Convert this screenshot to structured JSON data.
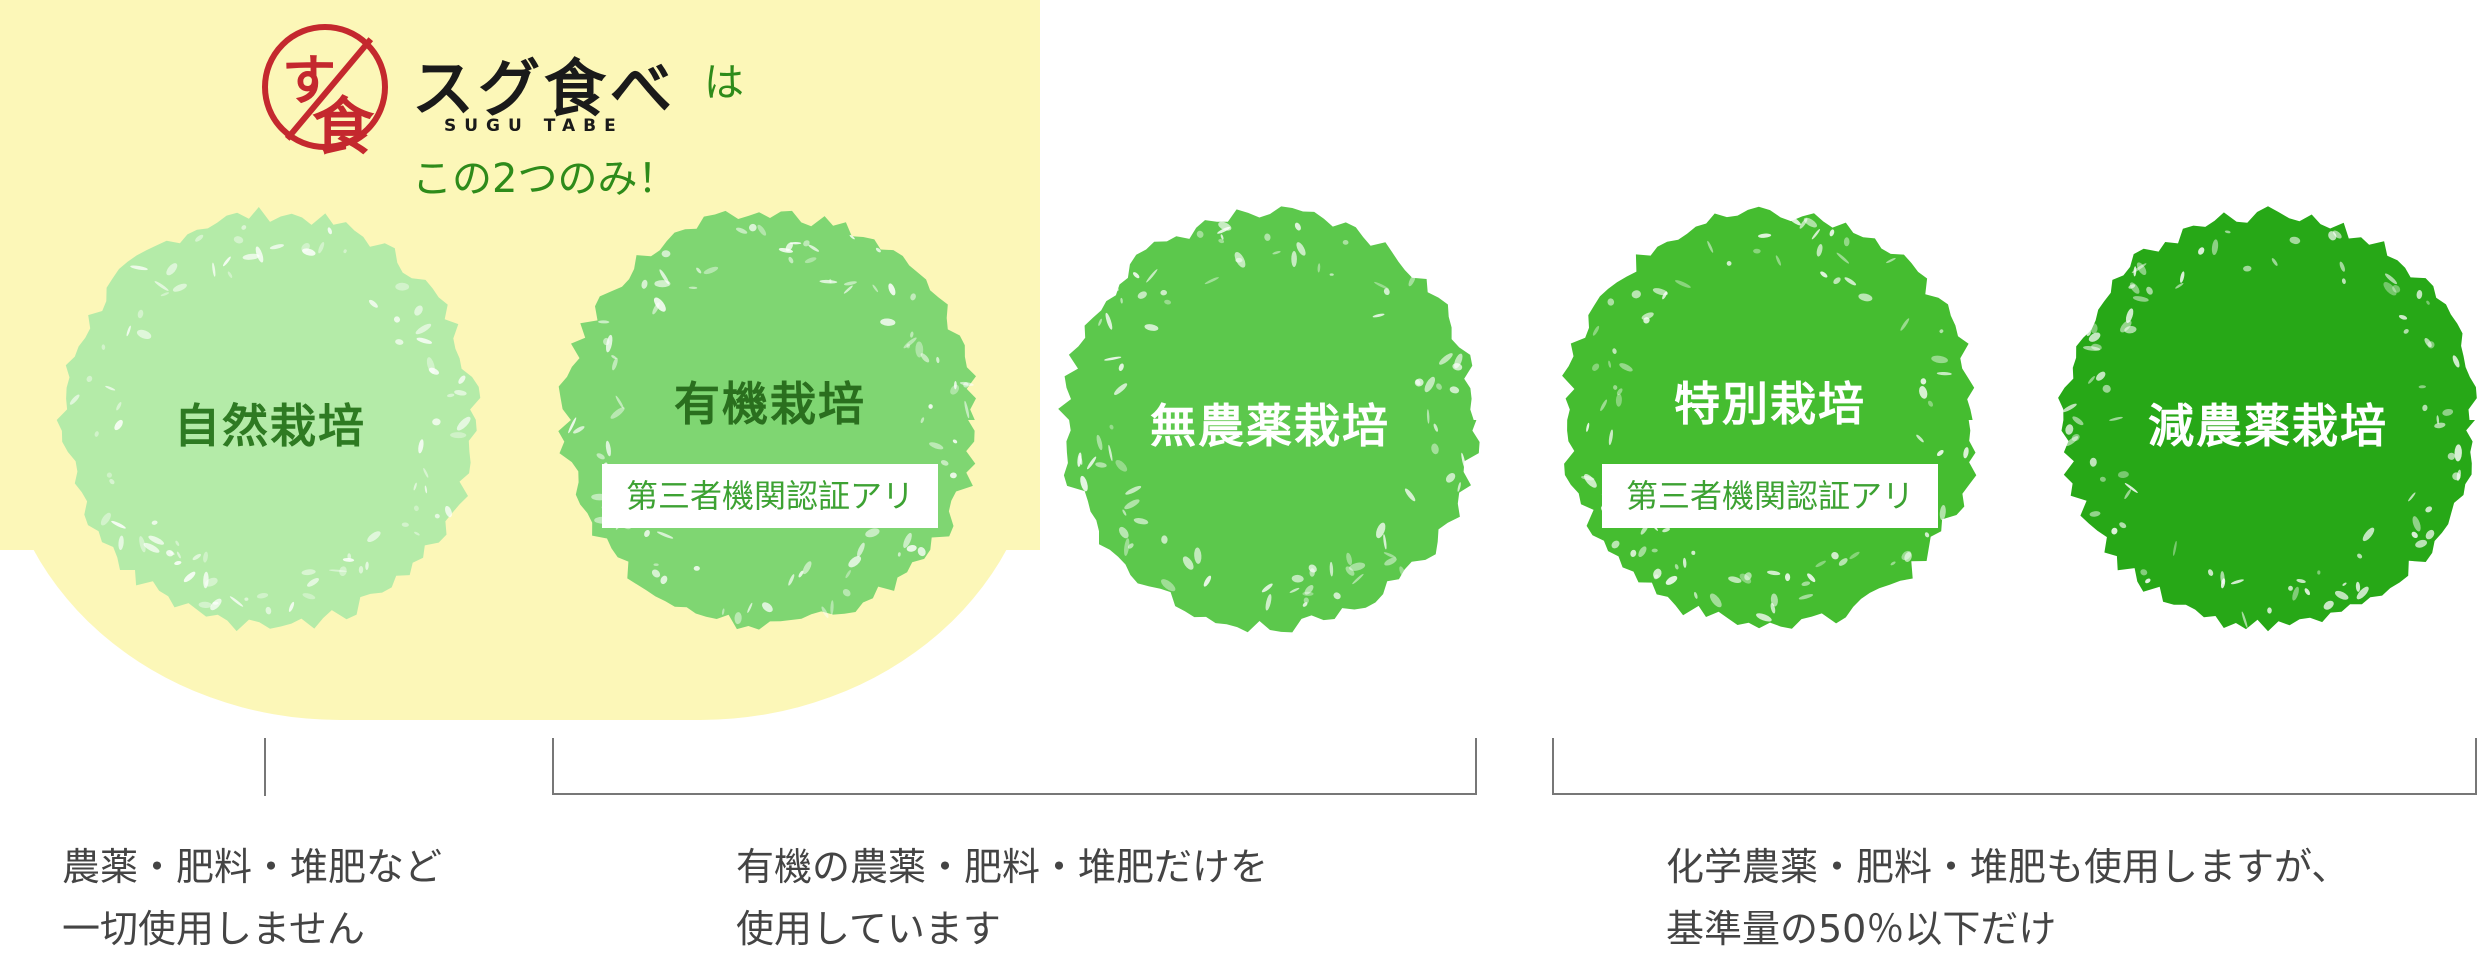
{
  "brand": {
    "name": "スグ食べ",
    "name_romaji": "SUGU TABE",
    "particle": "は",
    "note": "この2つのみ！"
  },
  "colors": {
    "highlight": "#fcf7b8",
    "logo_red": "#c4282e",
    "circle_1": "#b4eba8",
    "circle_2": "#7fd672",
    "circle_3": "#5cc84c",
    "circle_4": "#45bd30",
    "circle_5": "#27a817",
    "dark_green_text": "#2e7a22",
    "badge_text": "#3da233",
    "desc_text": "#444444"
  },
  "circles": [
    {
      "label": "自然栽培",
      "badge": ""
    },
    {
      "label": "有機栽培",
      "badge": "第三者機関認証アリ"
    },
    {
      "label": "無農薬栽培",
      "badge": ""
    },
    {
      "label": "特別栽培",
      "badge": "第三者機関認証アリ"
    },
    {
      "label": "減農薬栽培",
      "badge": ""
    }
  ],
  "descriptions": [
    {
      "line1": "農薬・肥料・堆肥など",
      "line2": "一切使用しません"
    },
    {
      "line1": "有機の農薬・肥料・堆肥だけを",
      "line2": "使用しています"
    },
    {
      "line1": "化学農薬・肥料・堆肥も使用しますが、",
      "line2": "基準量の50％以下だけ"
    }
  ]
}
